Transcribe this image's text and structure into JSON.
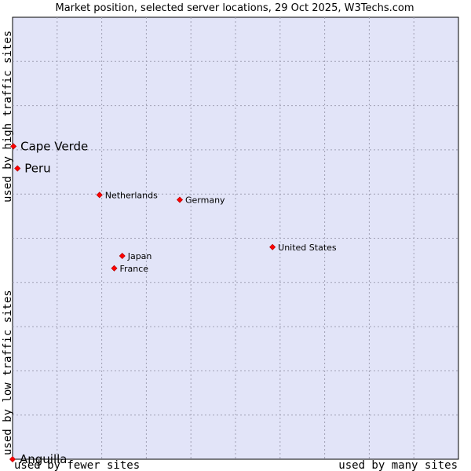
{
  "chart_data": {
    "type": "scatter",
    "title": "Market position, selected server locations, 29 Oct 2025, W3Techs.com",
    "xlabel_left": "used by fewer sites",
    "xlabel_right": "used by many sites",
    "ylabel_bottom": "used by low traffic sites",
    "ylabel_top": "used by high traffic sites",
    "xlim": [
      0,
      100
    ],
    "ylim": [
      0,
      100
    ],
    "grid": true,
    "marker_color": "#ff0000",
    "plot_background": "#e2e4f8",
    "points": [
      {
        "name": "Cape Verde",
        "x": 0.2,
        "y": 70.8,
        "emphasis": true
      },
      {
        "name": "Peru",
        "x": 1.1,
        "y": 65.8,
        "emphasis": true
      },
      {
        "name": "Netherlands",
        "x": 19.5,
        "y": 59.8,
        "emphasis": false
      },
      {
        "name": "Germany",
        "x": 37.5,
        "y": 58.7,
        "emphasis": false
      },
      {
        "name": "United States",
        "x": 58.3,
        "y": 48.0,
        "emphasis": false
      },
      {
        "name": "Japan",
        "x": 24.6,
        "y": 46.0,
        "emphasis": false
      },
      {
        "name": "France",
        "x": 22.8,
        "y": 43.2,
        "emphasis": false
      },
      {
        "name": "Anguilla",
        "x": 0.0,
        "y": 0.0,
        "emphasis": true
      }
    ]
  }
}
